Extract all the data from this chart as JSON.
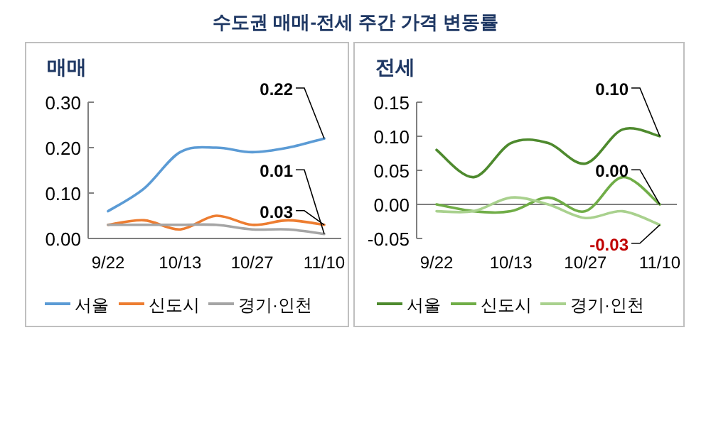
{
  "chart_data": [
    {
      "type": "line",
      "title": "수도권 매매-전세 주간 가격 변동률",
      "subtitle": "매매",
      "categories": [
        "9/22",
        null,
        "10/13",
        null,
        "10/27",
        null,
        "11/10"
      ],
      "series": [
        {
          "name": "서울",
          "color": "#5b9bd5",
          "values": [
            0.06,
            0.11,
            0.19,
            0.2,
            0.19,
            0.2,
            0.22
          ]
        },
        {
          "name": "신도시",
          "color": "#ed7d31",
          "values": [
            0.03,
            0.04,
            0.02,
            0.05,
            0.03,
            0.04,
            0.03
          ]
        },
        {
          "name": "경기·인천",
          "color": "#a5a5a5",
          "values": [
            0.03,
            0.03,
            0.03,
            0.03,
            0.02,
            0.02,
            0.01
          ]
        }
      ],
      "ylim": [
        0,
        0.3
      ],
      "yticks": [
        {
          "value": 0,
          "label": "0.00"
        },
        {
          "value": 0.1,
          "label": "0.10"
        },
        {
          "value": 0.2,
          "label": "0.20"
        },
        {
          "value": 0.3,
          "label": "0.30"
        }
      ],
      "grid": false,
      "legend": "bottom",
      "marker": "none",
      "line_style": "solid",
      "annotations": [
        {
          "text": "0.22",
          "x": "11/10",
          "y": 0.22
        },
        {
          "text": "0.01",
          "x": "11/10",
          "y": 0.01
        },
        {
          "text": "0.03",
          "x": "11/10",
          "y": 0.03
        }
      ]
    },
    {
      "type": "line",
      "subtitle": "전세",
      "categories": [
        "9/22",
        null,
        "10/13",
        null,
        "10/27",
        null,
        "11/10"
      ],
      "series": [
        {
          "name": "서울",
          "color": "#4e8a2e",
          "values": [
            0.08,
            0.04,
            0.09,
            0.09,
            0.06,
            0.11,
            0.1
          ]
        },
        {
          "name": "신도시",
          "color": "#70ad47",
          "values": [
            0.0,
            -0.01,
            -0.01,
            0.01,
            -0.01,
            0.04,
            0.0
          ]
        },
        {
          "name": "경기·인천",
          "color": "#a9d18e",
          "values": [
            -0.01,
            -0.01,
            0.01,
            0.0,
            -0.02,
            -0.01,
            -0.03
          ]
        }
      ],
      "ylim": [
        -0.05,
        0.15
      ],
      "yticks": [
        {
          "value": -0.05,
          "label": "-0.05"
        },
        {
          "value": 0,
          "label": "0.00"
        },
        {
          "value": 0.05,
          "label": "0.05"
        },
        {
          "value": 0.1,
          "label": "0.10"
        },
        {
          "value": 0.15,
          "label": "0.15"
        }
      ],
      "grid": false,
      "legend": "bottom",
      "marker": "none",
      "line_style": "solid",
      "ref_lines": [
        {
          "axis": "y",
          "value": 0,
          "color": "#7f7f7f"
        }
      ],
      "annotations": [
        {
          "text": "0.10",
          "x": "11/10",
          "y": 0.1
        },
        {
          "text": "0.00",
          "x": "11/10",
          "y": 0.0
        },
        {
          "text": "-0.03",
          "x": "11/10",
          "y": -0.03
        }
      ]
    }
  ]
}
